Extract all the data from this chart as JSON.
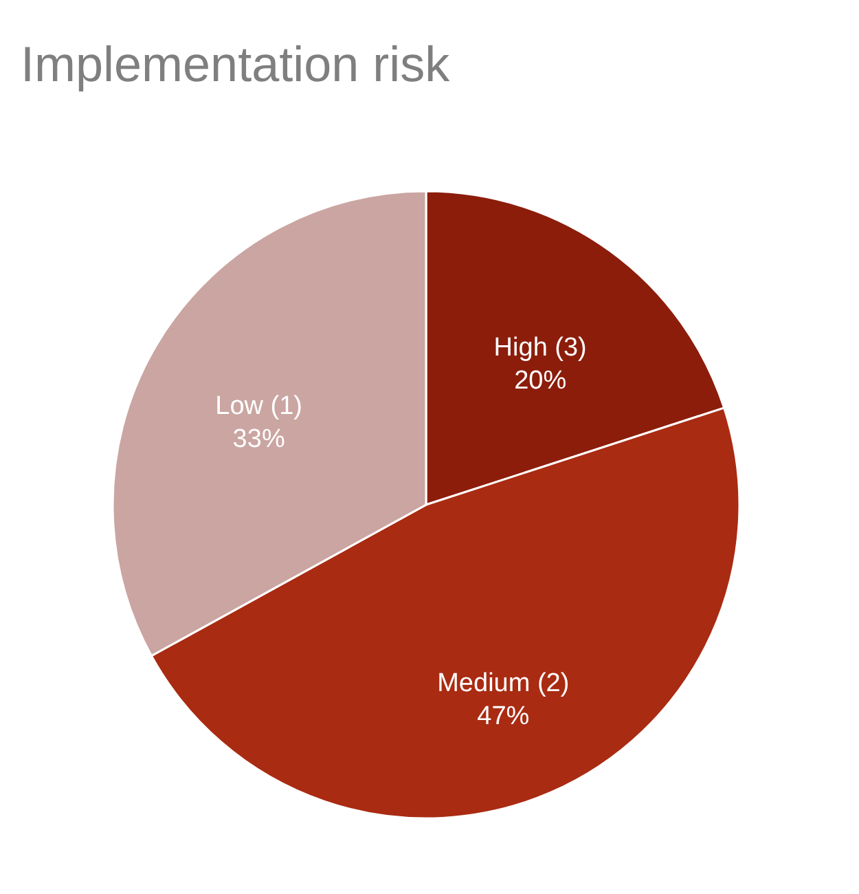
{
  "chart_data": {
    "type": "pie",
    "title": "Implementation risk",
    "categories": [
      "High (3)",
      "Medium (2)",
      "Low (1)"
    ],
    "values": [
      20,
      47,
      33
    ],
    "colors": [
      "#8c1d0b",
      "#a92b12",
      "#caa5a1"
    ],
    "value_labels": [
      "20%",
      "47%",
      "33%"
    ],
    "legend": false
  }
}
